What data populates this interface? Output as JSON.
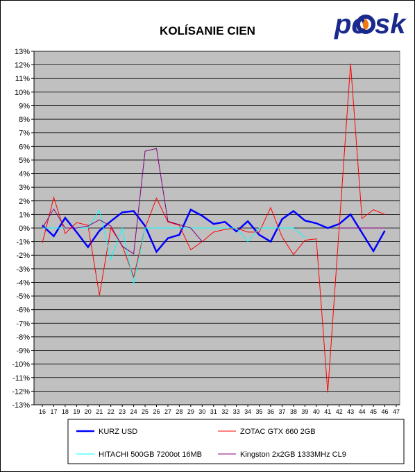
{
  "chart_data": {
    "type": "line",
    "title": "KOLÍSANIE CIEN",
    "xlabel": "",
    "ylabel": "",
    "x": [
      16,
      17,
      18,
      19,
      20,
      21,
      22,
      23,
      24,
      25,
      26,
      27,
      28,
      29,
      30,
      31,
      32,
      33,
      34,
      35,
      36,
      37,
      38,
      39,
      40,
      41,
      42,
      43,
      44,
      45,
      46
    ],
    "x_ticks": [
      16,
      17,
      18,
      19,
      20,
      21,
      22,
      23,
      24,
      25,
      26,
      27,
      28,
      29,
      30,
      31,
      32,
      33,
      34,
      35,
      36,
      37,
      38,
      39,
      40,
      41,
      42,
      43,
      44,
      45,
      46,
      47
    ],
    "ylim": [
      -13,
      13
    ],
    "y_step": 1,
    "y_unit": "%",
    "grid": true,
    "legend_position": "bottom",
    "plot_background": "#c0c0c0",
    "series": [
      {
        "name": "KURZ USD",
        "color": "#0000ff",
        "width": 2.5,
        "values": [
          0.2,
          -0.6,
          0.75,
          -0.3,
          -1.4,
          -0.2,
          0.5,
          1.15,
          1.25,
          0.15,
          -1.75,
          -0.75,
          -0.5,
          1.35,
          0.9,
          0.3,
          0.45,
          -0.25,
          0.5,
          -0.5,
          -1.0,
          0.65,
          1.25,
          0.55,
          0.35,
          0.0,
          0.3,
          1.0,
          -0.35,
          -1.7,
          -0.2
        ]
      },
      {
        "name": "ZOTAC GTX 660 2GB",
        "color": "#ff0000",
        "width": 1,
        "values": [
          -1.1,
          2.25,
          -0.4,
          0.4,
          0.2,
          -4.95,
          0.0,
          -1.3,
          -3.6,
          0.0,
          2.2,
          0.45,
          0.2,
          -1.6,
          -1.0,
          -0.3,
          -0.1,
          0.0,
          -0.3,
          -0.3,
          1.5,
          -0.65,
          -1.95,
          -0.9,
          -0.8,
          -12.1,
          0.0,
          12.1,
          0.7,
          1.35,
          1.0
        ]
      },
      {
        "name": "HITACHI 500GB 7200ot 16MB",
        "color": "#00ffff",
        "width": 1,
        "values": [
          0.0,
          0.0,
          0.0,
          0.0,
          0.0,
          1.3,
          -2.3,
          0.0,
          -4.1,
          0.0,
          0.0,
          0.0,
          0.0,
          0.0,
          0.0,
          0.0,
          0.0,
          0.0,
          -1.0,
          0.0,
          0.0,
          0.0,
          0.0,
          -0.7,
          null,
          null,
          null,
          null,
          null,
          null,
          null
        ]
      },
      {
        "name": "Kingston 2x2GB 1333MHz CL9",
        "color": "#800080",
        "width": 1,
        "values": [
          0.0,
          1.4,
          0.0,
          0.0,
          0.15,
          0.6,
          0.15,
          -1.35,
          -1.9,
          5.65,
          5.85,
          0.5,
          0.25,
          0.0,
          -1.0,
          null,
          null,
          null,
          null,
          null,
          null,
          null,
          null,
          null,
          null,
          null,
          0.0,
          0.0,
          0.0,
          0.0,
          0.0
        ]
      }
    ]
  },
  "logo": {
    "text_left": "pc",
    "text_right": "sk",
    "primary_color": "#1a2a8c",
    "accent_color": "#f07a10",
    "icon": "flame-o-icon"
  }
}
